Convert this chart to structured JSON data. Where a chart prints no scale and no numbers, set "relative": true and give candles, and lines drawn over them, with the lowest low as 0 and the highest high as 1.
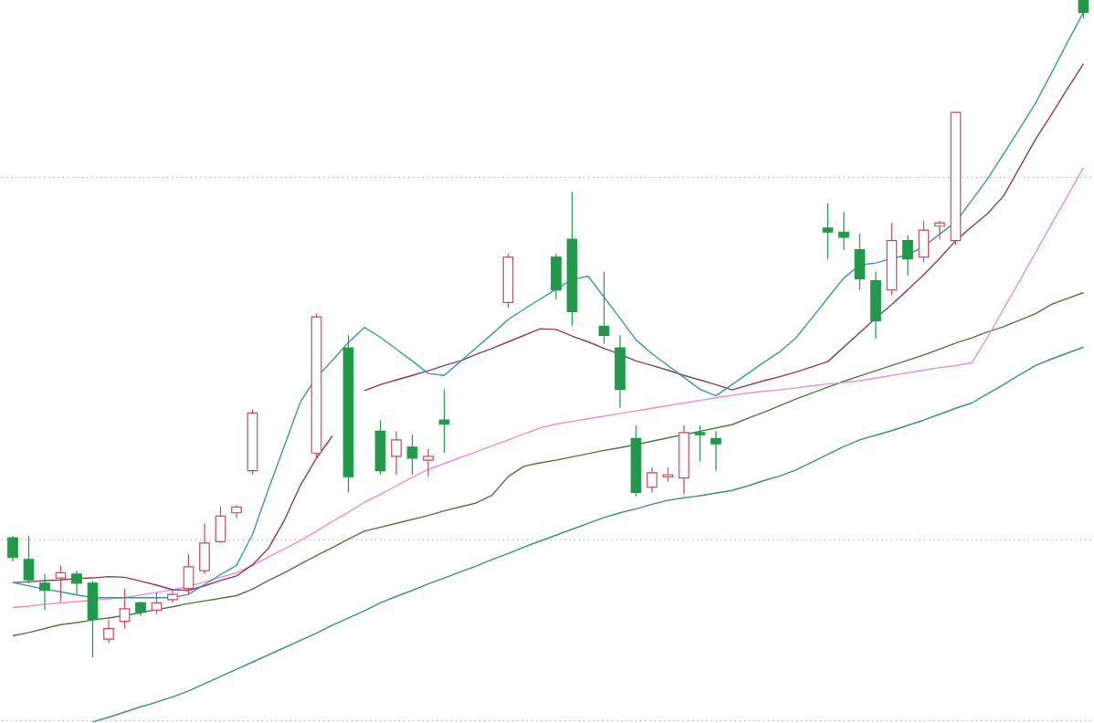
{
  "chart_data": {
    "type": "candlestick",
    "relative": true,
    "categories": [
      null,
      null,
      null,
      null,
      null,
      null,
      null,
      null,
      null,
      null,
      null,
      null,
      null,
      null,
      null,
      null,
      null,
      null,
      null,
      null,
      null,
      null,
      null,
      null,
      null,
      null,
      null,
      null,
      null,
      null,
      null,
      null,
      null,
      null,
      null,
      null,
      null,
      null,
      null,
      null,
      null,
      null,
      null,
      null,
      null,
      null,
      null,
      null,
      null,
      null,
      null,
      null,
      null,
      null,
      null,
      null,
      null,
      null,
      null,
      null,
      null,
      null,
      null,
      null,
      null,
      null,
      null,
      null
    ],
    "ohlc": [
      [
        0.182,
        0.185,
        0.146,
        0.152
      ],
      [
        0.149,
        0.185,
        0.113,
        0.118
      ],
      [
        0.113,
        0.127,
        0.072,
        0.102
      ],
      [
        0.121,
        0.14,
        0.085,
        0.129
      ],
      [
        0.127,
        0.132,
        0.096,
        0.113
      ],
      [
        0.113,
        0.116,
        0,
        0.058
      ],
      [
        0.028,
        0.058,
        0.022,
        0.044
      ],
      [
        0.055,
        0.105,
        0.044,
        0.074
      ],
      [
        0.083,
        0.085,
        0.063,
        0.069
      ],
      [
        0.072,
        0.099,
        0.066,
        0.083
      ],
      [
        0.088,
        0.102,
        0.083,
        0.096
      ],
      [
        0.105,
        0.157,
        0.096,
        0.138
      ],
      [
        0.132,
        0.204,
        0.127,
        0.174
      ],
      [
        0.176,
        0.229,
        0.174,
        0.215
      ],
      [
        0.22,
        0.231,
        0.212,
        0.229
      ],
      [
        0.284,
        0.377,
        0.278,
        0.372
      ],
      null,
      null,
      null,
      [
        0.311,
        0.523,
        0.303,
        0.518
      ],
      null,
      [
        0.471,
        0.49,
        0.251,
        0.275
      ],
      null,
      [
        0.344,
        0.361,
        0.278,
        0.284
      ],
      [
        0.306,
        0.344,
        0.278,
        0.331
      ],
      [
        0.32,
        0.339,
        0.278,
        0.303
      ],
      [
        0.3,
        0.317,
        0.275,
        0.306
      ],
      [
        0.361,
        0.408,
        0.311,
        0.355
      ],
      null,
      null,
      null,
      [
        0.54,
        0.614,
        0.532,
        0.609
      ],
      null,
      null,
      [
        0.609,
        0.614,
        0.545,
        0.559
      ],
      [
        0.636,
        0.708,
        0.504,
        0.526
      ],
      null,
      [
        0.504,
        0.587,
        0.477,
        0.49
      ],
      [
        0.471,
        0.49,
        0.38,
        0.408
      ],
      [
        0.333,
        0.353,
        0.245,
        0.251
      ],
      [
        0.259,
        0.289,
        0.251,
        0.281
      ],
      [
        0.275,
        0.289,
        0.267,
        0.278
      ],
      [
        0.273,
        0.353,
        0.248,
        0.342
      ],
      [
        0.342,
        0.353,
        0.298,
        0.339
      ],
      [
        0.333,
        0.344,
        0.284,
        0.325
      ],
      null,
      null,
      null,
      null,
      null,
      null,
      [
        0.653,
        0.691,
        0.606,
        0.647
      ],
      [
        0.647,
        0.678,
        0.62,
        0.639
      ],
      [
        0.62,
        0.645,
        0.559,
        0.576
      ],
      [
        0.573,
        0.587,
        0.485,
        0.512
      ],
      [
        0.559,
        0.661,
        0.551,
        0.634
      ],
      [
        0.634,
        0.642,
        0.581,
        0.606
      ],
      [
        0.609,
        0.664,
        0.601,
        0.65
      ],
      [
        0.656,
        0.664,
        0.636,
        0.661
      ],
      [
        0.634,
        0.829,
        0.628,
        0.829
      ],
      null,
      null,
      null,
      null,
      null,
      null,
      null,
      [
        1,
        1,
        0.972,
        0.981
      ]
    ],
    "colors": [
      "#1e9a48",
      "#1e9a48",
      "#1e9a48",
      "#d2475a",
      "#1e9a48",
      "#1e9a48",
      "#d2475a",
      "#d2475a",
      "#1e9a48",
      "#d2475a",
      "#d2475a",
      "#d2475a",
      "#d2475a",
      "#d2475a",
      "#d2475a",
      "#d2475a",
      null,
      null,
      null,
      "#d2475a",
      null,
      "#1e9a48",
      null,
      "#1e9a48",
      "#d2475a",
      "#1e9a48",
      "#d2475a",
      "#1e9a48",
      null,
      null,
      null,
      "#d2475a",
      null,
      null,
      "#1e9a48",
      "#1e9a48",
      null,
      "#1e9a48",
      "#1e9a48",
      "#1e9a48",
      "#d2475a",
      "#d2475a",
      "#d2475a",
      "#1e9a48",
      "#1e9a48",
      null,
      null,
      null,
      null,
      null,
      null,
      "#1e9a48",
      "#1e9a48",
      "#1e9a48",
      "#1e9a48",
      "#d2475a",
      "#1e9a48",
      "#d2475a",
      "#d2475a",
      "#d2475a",
      null,
      null,
      null,
      null,
      null,
      null,
      null,
      "#1e9a48"
    ],
    "series": [
      {
        "type": "line",
        "color": "#3a8f8f",
        "values": [
          null,
          null,
          null,
          null,
          null,
          -0.098,
          -0.091,
          -0.083,
          -0.075,
          -0.068,
          -0.06,
          -0.051,
          -0.04,
          -0.029,
          -0.018,
          -0.007,
          0.004,
          0.015,
          0.026,
          0.037,
          0.049,
          0.06,
          0.071,
          0.083,
          0.093,
          0.102,
          0.112,
          0.121,
          0.13,
          0.139,
          0.149,
          0.158,
          0.168,
          0.177,
          0.186,
          0.195,
          0.204,
          0.213,
          0.22,
          0.226,
          0.233,
          0.239,
          0.243,
          0.246,
          0.25,
          0.254,
          0.261,
          0.269,
          0.276,
          0.285,
          0.297,
          0.309,
          0.321,
          0.331,
          0.338,
          0.345,
          0.353,
          0.361,
          0.37,
          0.379,
          0.387,
          0.401,
          0.415,
          0.43,
          0.444,
          0.454,
          0.463,
          0.472
        ]
      },
      {
        "type": "line",
        "color": "#4d7a3a",
        "values": [
          0.033,
          0.038,
          0.044,
          0.05,
          0.053,
          0.057,
          0.06,
          0.064,
          0.068,
          0.073,
          0.077,
          0.082,
          0.086,
          0.09,
          0.094,
          0.104,
          0.117,
          0.129,
          0.142,
          0.155,
          0.167,
          0.18,
          0.192,
          0.198,
          0.204,
          0.21,
          0.216,
          0.223,
          0.229,
          0.235,
          0.247,
          0.275,
          0.291,
          0.296,
          0.3,
          0.305,
          0.31,
          0.315,
          0.319,
          0.324,
          0.329,
          0.334,
          0.339,
          0.344,
          0.349,
          0.354,
          0.364,
          0.373,
          0.383,
          0.393,
          0.402,
          0.411,
          0.42,
          0.428,
          0.436,
          0.444,
          0.452,
          0.46,
          0.469,
          0.478,
          0.486,
          0.495,
          0.503,
          0.513,
          0.523,
          0.537,
          0.546,
          0.555
        ]
      },
      {
        "type": "line",
        "color": "#e68fd8",
        "values": [
          0.076,
          0.078,
          0.081,
          0.083,
          0.085,
          0.087,
          0.089,
          0.091,
          0.095,
          0.099,
          0.103,
          0.108,
          0.115,
          0.122,
          0.129,
          0.14,
          0.153,
          0.165,
          0.178,
          0.192,
          0.207,
          0.221,
          0.236,
          0.248,
          0.261,
          0.274,
          0.286,
          0.295,
          0.304,
          0.313,
          0.322,
          0.331,
          0.34,
          0.349,
          0.355,
          0.359,
          0.363,
          0.367,
          0.371,
          0.375,
          0.379,
          0.383,
          0.387,
          0.391,
          0.395,
          0.399,
          0.402,
          0.405,
          0.407,
          0.41,
          0.413,
          0.416,
          0.418,
          0.421,
          0.425,
          0.429,
          0.433,
          0.437,
          0.441,
          0.444,
          0.448,
          0.487,
          0.53,
          0.573,
          0.616,
          0.659,
          0.702,
          0.745
        ]
      },
      {
        "type": "line",
        "color": "#8e3a66",
        "values": [
          0.114,
          0.115,
          0.117,
          0.118,
          0.12,
          0.121,
          0.123,
          0.122,
          0.116,
          0.11,
          0.103,
          0.102,
          0.109,
          0.117,
          0.124,
          0.141,
          0.166,
          0.209,
          0.262,
          0.303,
          0.337,
          null,
          0.406,
          0.415,
          0.422,
          0.429,
          0.436,
          0.444,
          0.451,
          0.461,
          0.47,
          0.48,
          0.49,
          0.5,
          0.499,
          0.489,
          0.48,
          0.47,
          0.461,
          0.451,
          0.444,
          0.437,
          0.429,
          0.422,
          0.415,
          0.407,
          0.414,
          0.421,
          0.427,
          0.434,
          0.442,
          0.45,
          0.472,
          0.494,
          0.516,
          0.537,
          0.559,
          0.582,
          0.607,
          0.634,
          0.655,
          0.675,
          0.702,
          0.745,
          0.788,
          0.826,
          0.865,
          0.903
        ]
      },
      {
        "type": "line",
        "color": "#3a97a8",
        "values": [
          0.114,
          0.109,
          0.104,
          0.1,
          0.095,
          0.091,
          0.091,
          0.091,
          0.091,
          0.091,
          0.091,
          0.096,
          0.111,
          0.126,
          0.14,
          0.187,
          0.256,
          0.322,
          0.389,
          0.426,
          0.452,
          0.479,
          0.502,
          0.487,
          0.469,
          0.451,
          0.432,
          0.429,
          0.45,
          0.471,
          0.492,
          0.514,
          0.53,
          0.545,
          0.56,
          0.575,
          0.58,
          0.548,
          0.516,
          0.483,
          0.462,
          0.444,
          0.426,
          0.408,
          0.398,
          0.415,
          0.432,
          0.449,
          0.465,
          0.486,
          0.516,
          0.547,
          0.577,
          0.597,
          0.6,
          0.607,
          0.612,
          0.625,
          0.644,
          0.662,
          0.695,
          0.728,
          0.766,
          0.804,
          0.843,
          0.889,
          0.936,
          0.981
        ]
      }
    ],
    "ref_lines": [
      {
        "axis": "y",
        "value": 0.73,
        "color": "#aaaaaa",
        "line_style": "dotted"
      },
      {
        "axis": "y",
        "value": 0.179,
        "color": "#aaaaaa",
        "line_style": "dotted"
      },
      {
        "axis": "y",
        "value": -0.096,
        "color": "#aaaaaa",
        "line_style": "dotted"
      }
    ]
  }
}
